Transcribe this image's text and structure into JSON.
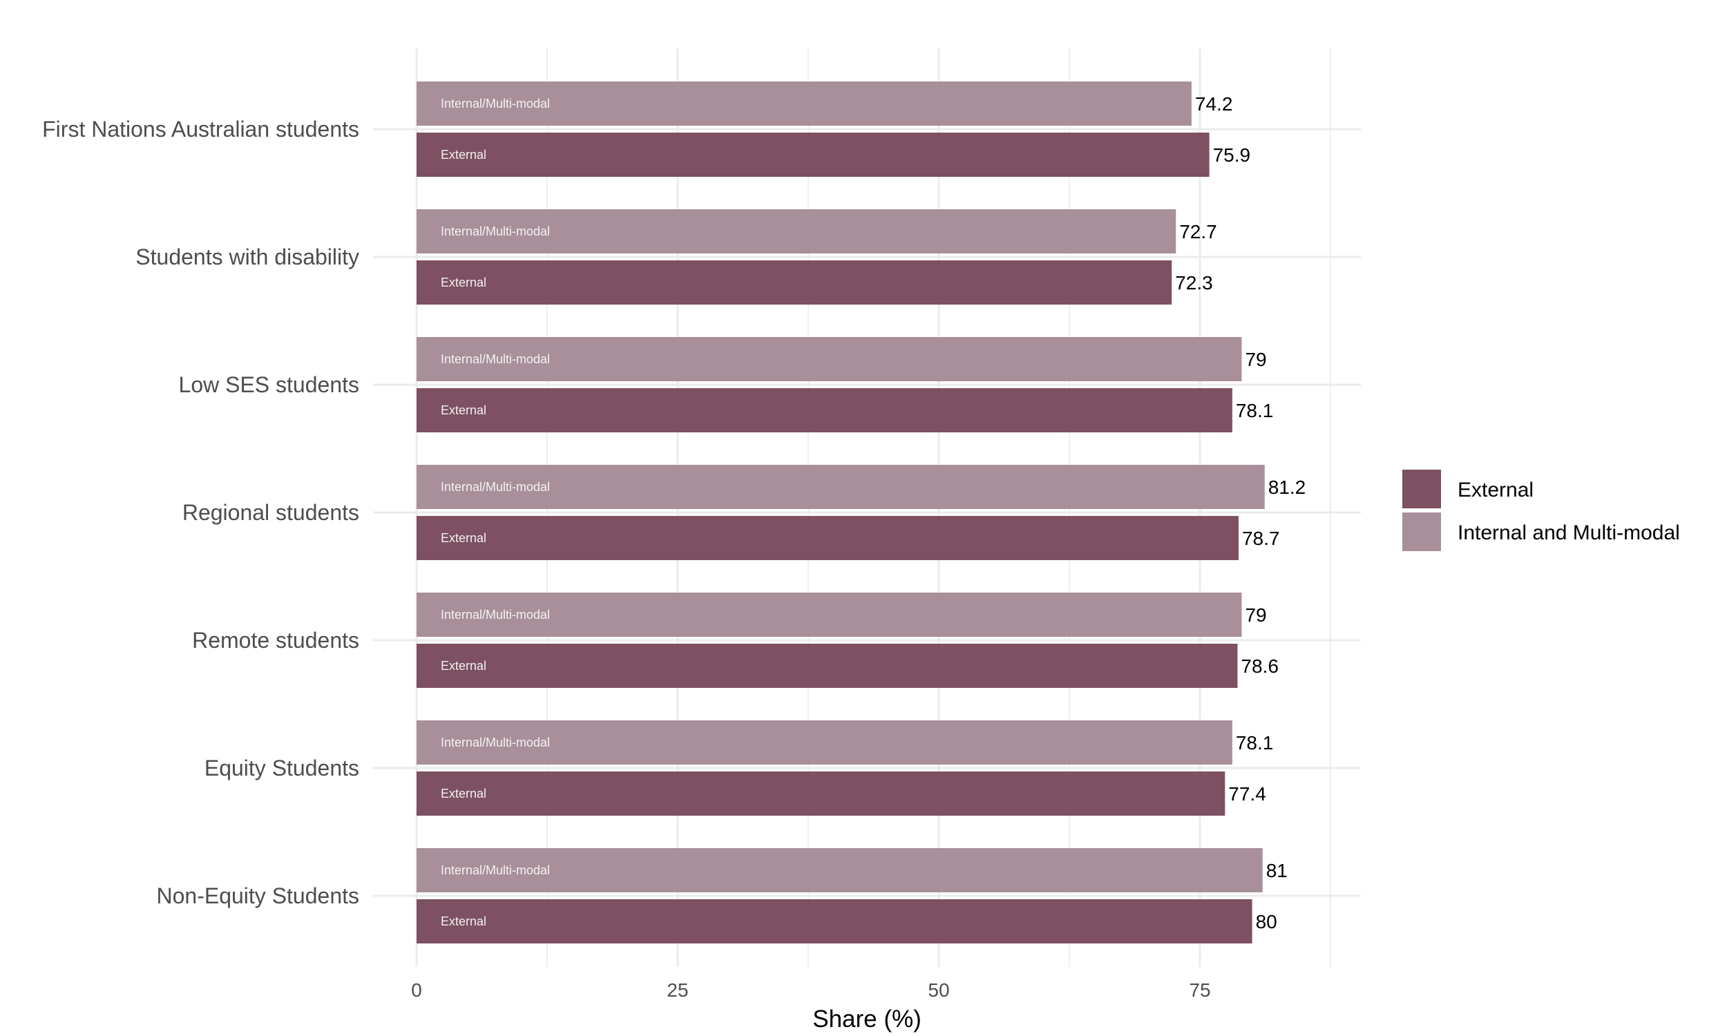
{
  "chart_data": {
    "type": "bar",
    "orientation": "horizontal",
    "categories": [
      "First Nations Australian students",
      "Students with disability",
      "Low SES students",
      "Regional students",
      "Remote students",
      "Equity Students",
      "Non-Equity Students"
    ],
    "series": [
      {
        "name": "External",
        "bar_label": "External",
        "color": "#7d5062",
        "values": [
          75.9,
          72.3,
          78.1,
          78.7,
          78.6,
          77.4,
          80
        ]
      },
      {
        "name": "Internal and Multi-modal",
        "bar_label": "Internal/Multi-modal",
        "color": "#a88f9a",
        "values": [
          74.2,
          72.7,
          79,
          81.2,
          79,
          78.1,
          81
        ]
      }
    ],
    "xlabel": "Share (%)",
    "ylabel": "",
    "xlim": [
      0,
      90
    ],
    "xticks": [
      0,
      25,
      50,
      75
    ],
    "grid": true,
    "legend_position": "right"
  }
}
